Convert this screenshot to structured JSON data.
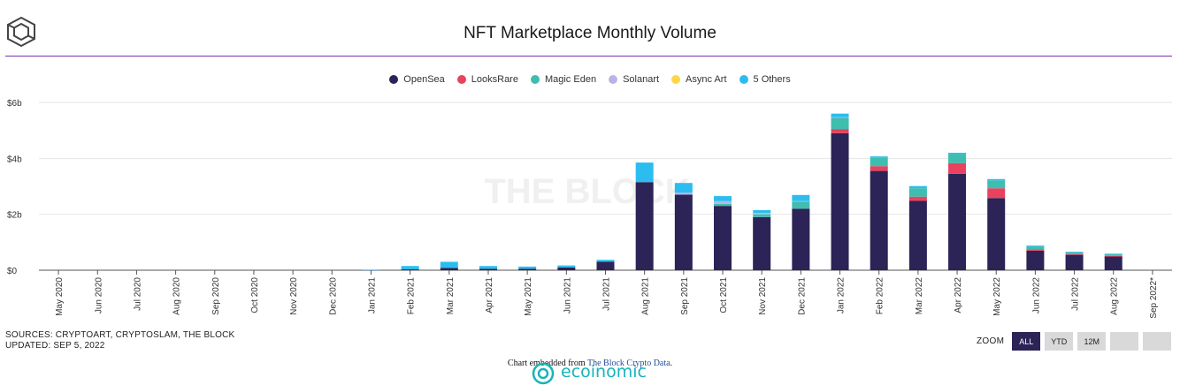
{
  "header": {
    "title": "NFT Marketplace Monthly Volume"
  },
  "footer": {
    "sources": "SOURCES: CRYPTOART, CRYPTOSLAM, THE BLOCK",
    "updated": "UPDATED: SEP 5, 2022",
    "zoom_label": "ZOOM",
    "zoom_buttons": [
      "ALL",
      "YTD",
      "12M",
      "",
      ""
    ],
    "embed_prefix": "Chart embedded from ",
    "embed_link": "The Block Crypto Data",
    "embed_suffix": ".",
    "watermark_text": "ecoinomic"
  },
  "colors": {
    "accent_rule": "#7b2fb3",
    "zoom_active": "#2c2357",
    "watermark": "#19b3b9"
  },
  "chart_data": {
    "type": "bar",
    "stacked": true,
    "title": "NFT Marketplace Monthly Volume",
    "watermark": "THE BLOCK",
    "xlabel": "",
    "ylabel": "",
    "y_ticks": [
      "$0",
      "$2b",
      "$4b",
      "$6b"
    ],
    "ylim": [
      0,
      6
    ],
    "y_unit": "billion USD",
    "grid": true,
    "legend_position": "top",
    "categories": [
      "May 2020",
      "Jun 2020",
      "Jul 2020",
      "Aug 2020",
      "Sep 2020",
      "Oct 2020",
      "Nov 2020",
      "Dec 2020",
      "Jan 2021",
      "Feb 2021",
      "Mar 2021",
      "Apr 2021",
      "May 2021",
      "Jun 2021",
      "Jul 2021",
      "Aug 2021",
      "Sep 2021",
      "Oct 2021",
      "Nov 2021",
      "Dec 2021",
      "Jan 2022",
      "Feb 2022",
      "Mar 2022",
      "Apr 2022",
      "May 2022",
      "Jun 2022",
      "Jul 2022",
      "Aug 2022",
      "Sep 2022*"
    ],
    "series": [
      {
        "name": "OpenSea",
        "color": "#2c2357",
        "values": [
          0,
          0,
          0,
          0,
          0,
          0,
          0,
          0,
          0.01,
          0.03,
          0.08,
          0.05,
          0.05,
          0.1,
          0.3,
          3.15,
          2.7,
          2.3,
          1.9,
          2.2,
          4.9,
          3.55,
          2.48,
          3.45,
          2.58,
          0.7,
          0.55,
          0.5,
          0
        ]
      },
      {
        "name": "LooksRare",
        "color": "#e8425f",
        "values": [
          0,
          0,
          0,
          0,
          0,
          0,
          0,
          0,
          0,
          0,
          0,
          0,
          0,
          0,
          0,
          0,
          0,
          0,
          0,
          0,
          0.15,
          0.17,
          0.15,
          0.38,
          0.35,
          0.05,
          0.02,
          0.01,
          0
        ]
      },
      {
        "name": "Magic Eden",
        "color": "#3fbdaf",
        "values": [
          0,
          0,
          0,
          0,
          0,
          0,
          0,
          0,
          0,
          0,
          0,
          0,
          0,
          0,
          0,
          0,
          0,
          0.07,
          0.1,
          0.25,
          0.4,
          0.3,
          0.3,
          0.32,
          0.28,
          0.1,
          0.07,
          0.06,
          0
        ]
      },
      {
        "name": "Solanart",
        "color": "#b8b4e6",
        "values": [
          0,
          0,
          0,
          0,
          0,
          0,
          0,
          0,
          0,
          0,
          0,
          0,
          0,
          0,
          0,
          0,
          0.07,
          0.1,
          0.05,
          0.02,
          0.02,
          0,
          0,
          0,
          0,
          0,
          0,
          0,
          0
        ]
      },
      {
        "name": "Async Art",
        "color": "#ffd54a",
        "values": [
          0,
          0,
          0,
          0,
          0,
          0,
          0,
          0,
          0,
          0,
          0,
          0,
          0,
          0,
          0,
          0,
          0,
          0,
          0,
          0,
          0,
          0,
          0,
          0,
          0,
          0,
          0,
          0,
          0
        ]
      },
      {
        "name": "5 Others",
        "color": "#2bbdf0",
        "values": [
          0,
          0,
          0,
          0,
          0,
          0,
          0,
          0,
          0.01,
          0.12,
          0.22,
          0.1,
          0.08,
          0.07,
          0.07,
          0.7,
          0.35,
          0.18,
          0.1,
          0.22,
          0.13,
          0.05,
          0.08,
          0.05,
          0.05,
          0.03,
          0.02,
          0.02,
          0
        ]
      }
    ]
  }
}
